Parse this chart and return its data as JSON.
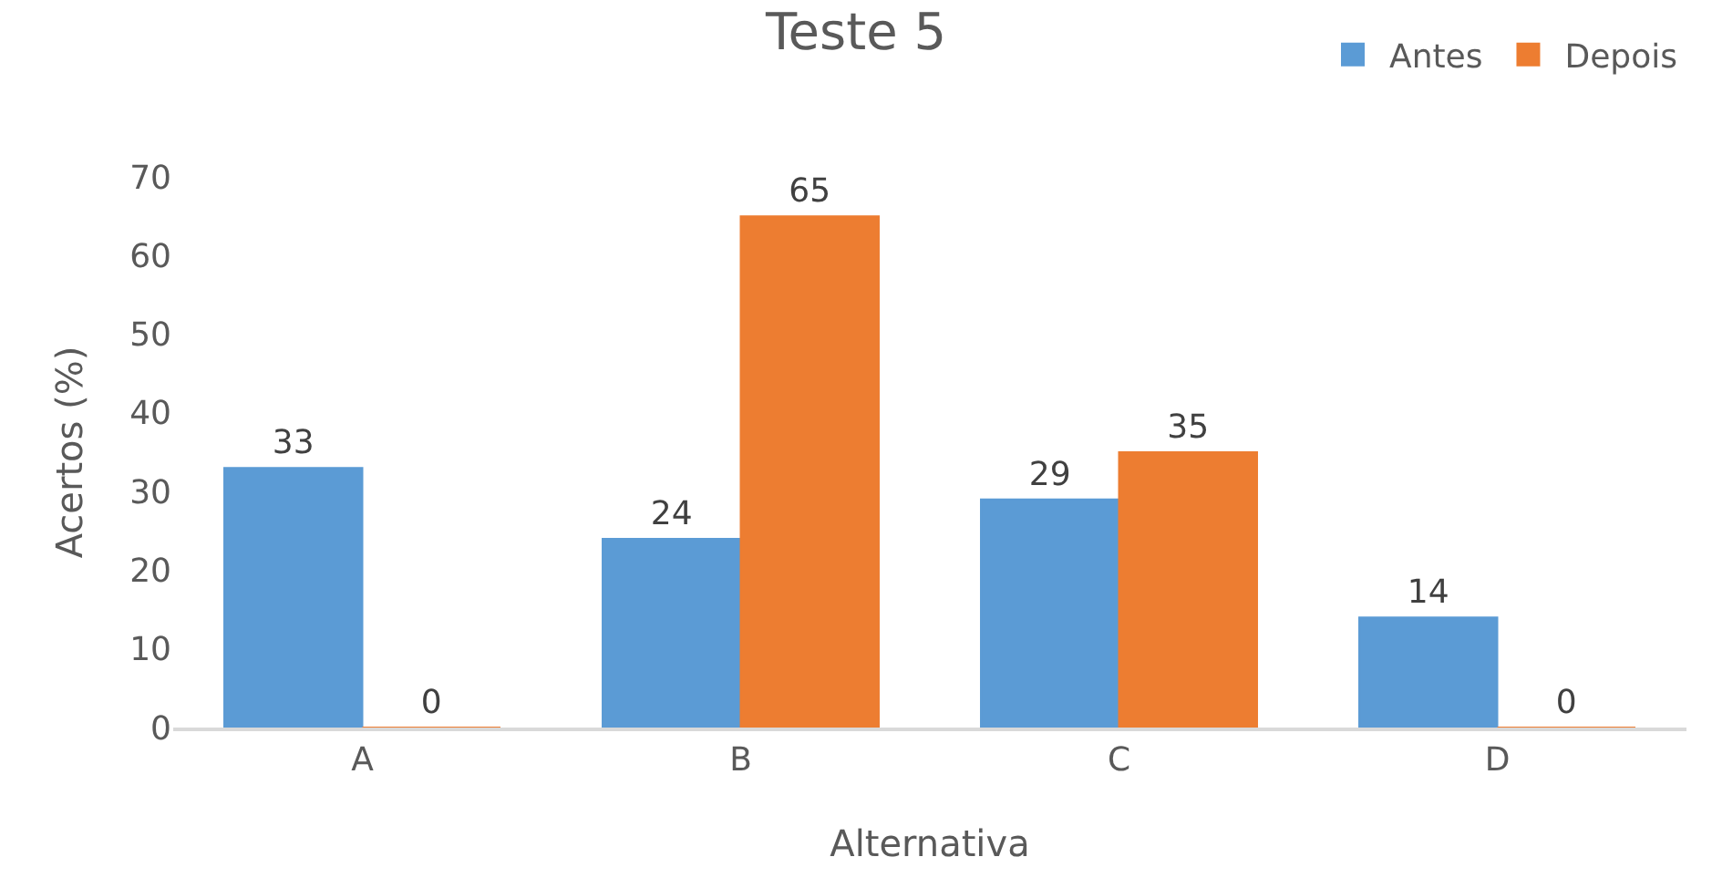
{
  "chart_data": {
    "type": "bar",
    "title": "Teste 5",
    "xlabel": "Alternativa",
    "ylabel": "Acertos (%)",
    "categories": [
      "A",
      "B",
      "C",
      "D"
    ],
    "series": [
      {
        "name": "Antes",
        "color": "#5b9bd5",
        "values": [
          33,
          24,
          29,
          14
        ]
      },
      {
        "name": "Depois",
        "color": "#ed7d31",
        "values": [
          0,
          65,
          35,
          0
        ]
      }
    ],
    "ylim": [
      0,
      70
    ],
    "yticks": [
      0,
      10,
      20,
      30,
      40,
      50,
      60,
      70
    ],
    "grid": false,
    "legend": "top right",
    "data_labels": true
  }
}
